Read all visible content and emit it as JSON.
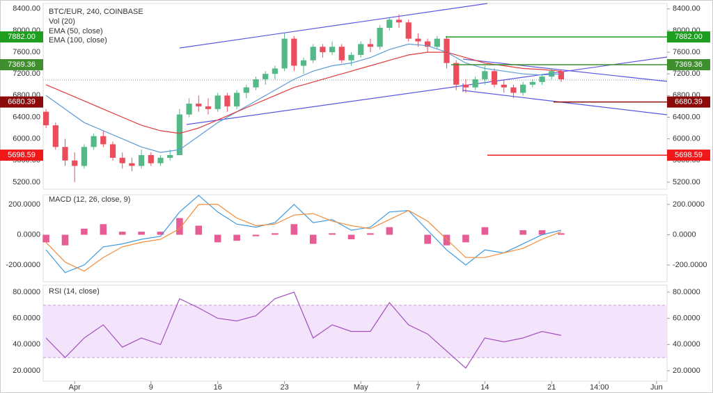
{
  "chart_data": [
    {
      "type": "candlestick",
      "title": "BTC/EUR, 240, COINBASE",
      "labels": [
        "Vol (20)"
      ],
      "up_color": "#53b987",
      "down_color": "#eb4d5c",
      "x": [
        -2,
        -1,
        0,
        1,
        2,
        3,
        4,
        5,
        6,
        7,
        8,
        9,
        10,
        11,
        12,
        13,
        14,
        15,
        16,
        17,
        18,
        19,
        20,
        21,
        22,
        23,
        24,
        25,
        26,
        27,
        28,
        29,
        30,
        31,
        32,
        33,
        34,
        35,
        36,
        37,
        38,
        39,
        40,
        41,
        42,
        43,
        44,
        45,
        46,
        47,
        48,
        49,
        50,
        51,
        52
      ],
      "ohlc": [
        [
          6500,
          6550,
          6200,
          6250
        ],
        [
          6250,
          6300,
          5800,
          5850
        ],
        [
          5850,
          6000,
          5500,
          5600
        ],
        [
          5600,
          5750,
          5200,
          5500
        ],
        [
          5500,
          5900,
          5450,
          5850
        ],
        [
          5850,
          6100,
          5800,
          6050
        ],
        [
          6050,
          6150,
          5850,
          5900
        ],
        [
          5900,
          5950,
          5600,
          5650
        ],
        [
          5650,
          5750,
          5450,
          5550
        ],
        [
          5550,
          5650,
          5400,
          5500
        ],
        [
          5500,
          5800,
          5450,
          5700
        ],
        [
          5700,
          5750,
          5500,
          5550
        ],
        [
          5550,
          5700,
          5500,
          5650
        ],
        [
          5650,
          5800,
          5600,
          5700
        ],
        [
          5700,
          6550,
          5700,
          6450
        ],
        [
          6450,
          6750,
          6400,
          6650
        ],
        [
          6650,
          6800,
          6500,
          6600
        ],
        [
          6600,
          6750,
          6450,
          6550
        ],
        [
          6550,
          6850,
          6500,
          6800
        ],
        [
          6800,
          6850,
          6500,
          6600
        ],
        [
          6600,
          6900,
          6550,
          6850
        ],
        [
          6850,
          7000,
          6750,
          6950
        ],
        [
          6950,
          7150,
          6900,
          7100
        ],
        [
          7100,
          7250,
          7000,
          7200
        ],
        [
          7200,
          7350,
          7100,
          7300
        ],
        [
          7300,
          7950,
          7250,
          7850
        ],
        [
          7850,
          7900,
          7250,
          7350
        ],
        [
          7350,
          7500,
          7200,
          7450
        ],
        [
          7450,
          7750,
          7400,
          7700
        ],
        [
          7700,
          7750,
          7500,
          7600
        ],
        [
          7600,
          7800,
          7550,
          7700
        ],
        [
          7700,
          7750,
          7400,
          7450
        ],
        [
          7450,
          7600,
          7350,
          7550
        ],
        [
          7550,
          7800,
          7500,
          7750
        ],
        [
          7750,
          7850,
          7600,
          7700
        ],
        [
          7700,
          8100,
          7650,
          8050
        ],
        [
          8050,
          8250,
          8000,
          8200
        ],
        [
          8200,
          8300,
          8050,
          8150
        ],
        [
          8150,
          8200,
          7800,
          7850
        ],
        [
          7850,
          7950,
          7700,
          7800
        ],
        [
          7800,
          7850,
          7600,
          7700
        ],
        [
          7700,
          7900,
          7650,
          7850
        ],
        [
          7850,
          7900,
          7300,
          7400
        ],
        [
          7400,
          7450,
          6900,
          7000
        ],
        [
          7000,
          7100,
          6850,
          6950
        ],
        [
          6950,
          7150,
          6900,
          7100
        ],
        [
          7100,
          7350,
          7000,
          7250
        ],
        [
          7250,
          7300,
          6950,
          7000
        ],
        [
          7000,
          7100,
          6850,
          6950
        ],
        [
          6950,
          7000,
          6750,
          6850
        ],
        [
          6850,
          7050,
          6800,
          7000
        ],
        [
          7000,
          7100,
          6950,
          7050
        ],
        [
          7050,
          7200,
          7000,
          7150
        ],
        [
          7150,
          7300,
          7100,
          7250
        ],
        [
          7250,
          7280,
          7050,
          7100
        ]
      ],
      "ema": {
        "x": [
          -2,
          0,
          2,
          4,
          6,
          8,
          10,
          12,
          14,
          16,
          18,
          20,
          22,
          24,
          26,
          28,
          30,
          32,
          34,
          36,
          38,
          40,
          42,
          44,
          46,
          48,
          50,
          52
        ],
        "series": [
          {
            "name": "EMA (50, close)",
            "color": "#5b9bd5",
            "values": [
              6800,
              6550,
              6300,
              6150,
              6000,
              5850,
              5750,
              5800,
              6050,
              6300,
              6500,
              6700,
              6900,
              7100,
              7250,
              7350,
              7400,
              7500,
              7650,
              7750,
              7720,
              7600,
              7400,
              7300,
              7250,
              7200,
              7180,
              7200
            ]
          },
          {
            "name": "EMA (100, close)",
            "color": "#e03a3a",
            "values": [
              7000,
              6850,
              6700,
              6550,
              6400,
              6250,
              6150,
              6100,
              6200,
              6350,
              6500,
              6650,
              6800,
              6950,
              7050,
              7150,
              7250,
              7350,
              7450,
              7550,
              7600,
              7600,
              7500,
              7400,
              7350,
              7300,
              7280,
              7250
            ]
          }
        ]
      },
      "levels": [
        {
          "value": 7882,
          "label": "7882.00",
          "color": "#1e9e1e"
        },
        {
          "value": 7369.36,
          "label": "7369.36",
          "color": "#3f8f2f"
        },
        {
          "value": 6680.39,
          "label": "6680.39",
          "color": "#8b0a0a"
        },
        {
          "value": 5698.59,
          "label": "5698.59",
          "color": "#f01818"
        }
      ],
      "ylim": [
        5070,
        8500
      ],
      "yticks": [
        {
          "value": 5200,
          "label": "5200.00"
        },
        {
          "value": 5600,
          "label": "5600.00"
        },
        {
          "value": 6000,
          "label": "6000.00"
        },
        {
          "value": 6400,
          "label": "6400.00"
        },
        {
          "value": 6800,
          "label": "6800.00"
        },
        {
          "value": 7200,
          "label": "7200.00"
        },
        {
          "value": 7600,
          "label": "7600.00"
        },
        {
          "value": 8000,
          "label": "8000.00"
        },
        {
          "value": 8400,
          "label": "8400.00"
        }
      ],
      "xlim": [
        -2.3,
        63.1
      ],
      "xticks": [
        {
          "value": 1,
          "label": "Apr"
        },
        9,
        16,
        23,
        {
          "value": 31,
          "label": "May"
        },
        {
          "value": 37,
          "label": "7"
        },
        {
          "value": 44,
          "label": "14"
        },
        {
          "value": 51,
          "label": "21"
        },
        {
          "value": 56,
          "label": "14:00"
        },
        {
          "value": 62,
          "label": "Jun"
        }
      ]
    },
    {
      "type": "line",
      "title": "MACD (12, 26, close, 9)",
      "x": [
        -2,
        0,
        2,
        4,
        6,
        8,
        10,
        12,
        14,
        16,
        18,
        20,
        22,
        24,
        26,
        28,
        30,
        32,
        34,
        36,
        38,
        40,
        42,
        44,
        46,
        48,
        50,
        52
      ],
      "series": [
        {
          "color": "#3d9be0",
          "values": [
            -100,
            -250,
            -200,
            -80,
            -60,
            -30,
            -10,
            150,
            260,
            150,
            70,
            50,
            80,
            200,
            80,
            100,
            30,
            50,
            150,
            160,
            30,
            -100,
            -200,
            -100,
            -120,
            -60,
            0,
            30
          ]
        },
        {
          "color": "#f28c3a",
          "values": [
            -50,
            -180,
            -240,
            -150,
            -80,
            -50,
            -30,
            40,
            200,
            200,
            110,
            60,
            70,
            130,
            140,
            90,
            60,
            40,
            100,
            160,
            90,
            -30,
            -150,
            -150,
            -120,
            -90,
            -30,
            20
          ]
        }
      ],
      "histogram": {
        "color": "#e0337a",
        "values": [
          -50,
          -70,
          40,
          70,
          20,
          20,
          20,
          110,
          60,
          -50,
          -40,
          -10,
          10,
          70,
          -60,
          10,
          -30,
          10,
          50,
          0,
          -60,
          -70,
          -50,
          50,
          0,
          30,
          30,
          10
        ]
      },
      "ylim": [
        -310,
        264
      ],
      "yticks": [
        {
          "value": -200,
          "label": "-200.0000"
        },
        {
          "value": 0,
          "label": "0.0000"
        },
        {
          "value": 200,
          "label": "200.0000"
        }
      ]
    },
    {
      "type": "line",
      "title": "RSI (14, close)",
      "x": [
        -2,
        0,
        2,
        4,
        6,
        8,
        10,
        12,
        14,
        16,
        18,
        20,
        22,
        24,
        26,
        28,
        30,
        32,
        34,
        36,
        38,
        40,
        42,
        44,
        46,
        48,
        50,
        52
      ],
      "series": [
        {
          "color": "#a24fc0",
          "values": [
            45,
            30,
            45,
            55,
            38,
            45,
            40,
            75,
            68,
            60,
            58,
            62,
            75,
            80,
            45,
            55,
            50,
            50,
            72,
            55,
            48,
            35,
            22,
            45,
            42,
            45,
            50,
            47
          ]
        }
      ],
      "band": [
        30,
        70
      ],
      "band_color": "#f3e3fb",
      "ylim": [
        12,
        85.3
      ],
      "yticks": [
        {
          "value": 20,
          "label": "20.0000"
        },
        {
          "value": 40,
          "label": "40.0000"
        },
        {
          "value": 60,
          "label": "60.0000"
        },
        {
          "value": 80,
          "label": "80.0000"
        }
      ]
    }
  ]
}
